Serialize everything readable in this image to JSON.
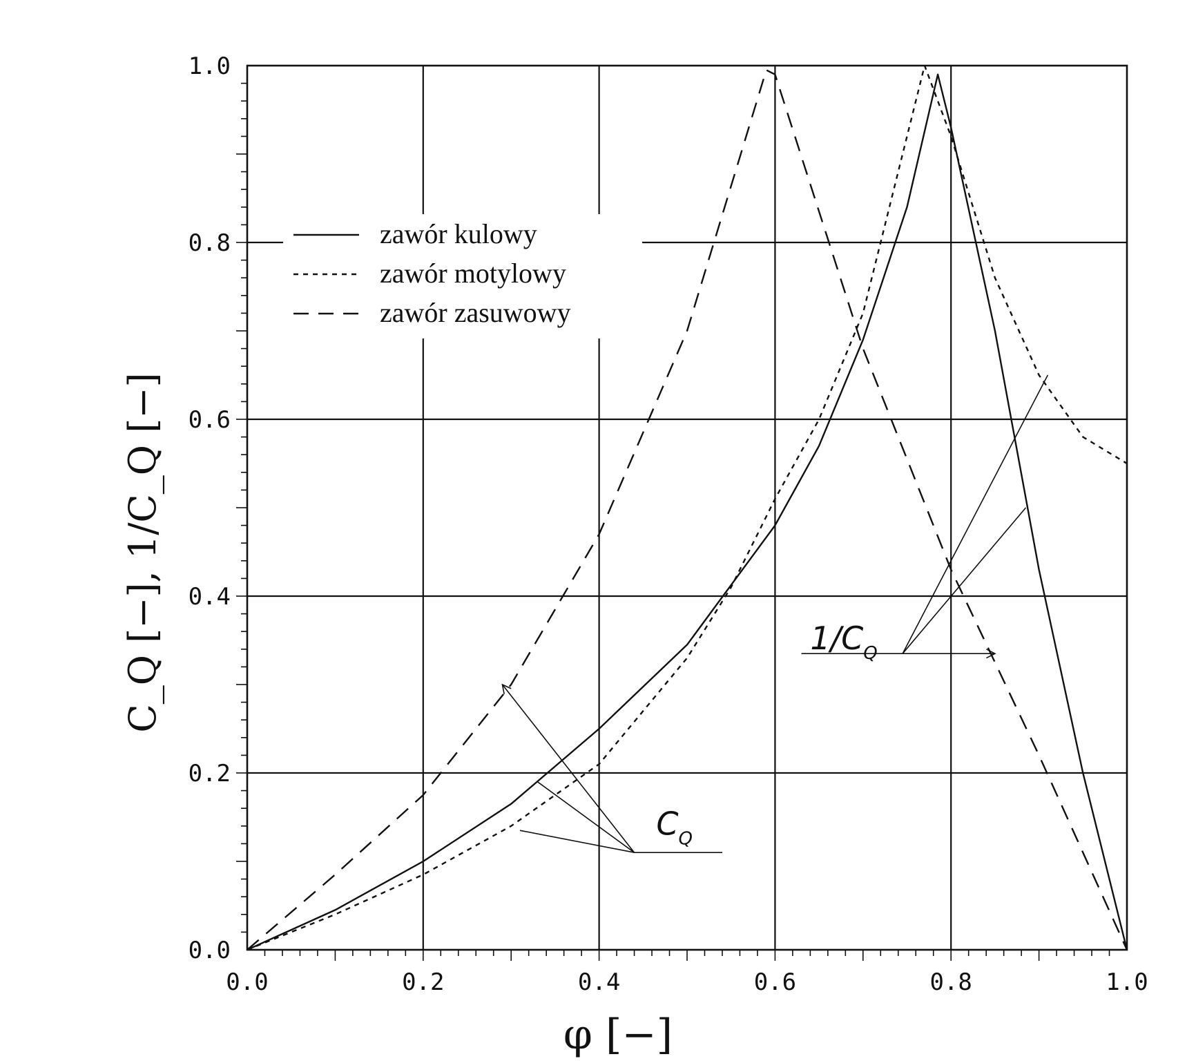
{
  "chart_data": {
    "type": "line",
    "xlabel": "φ [−]",
    "ylabel": "C_Q [−],  1/C_Q [−]",
    "xlim": [
      0,
      1
    ],
    "ylim": [
      0,
      1
    ],
    "x_ticks": [
      "0.0",
      "0.2",
      "0.4",
      "0.6",
      "0.8",
      "1.0"
    ],
    "y_ticks": [
      "0.0",
      "0.2",
      "0.4",
      "0.6",
      "0.8",
      "1.0"
    ],
    "grid": true,
    "legend_position": "top-left",
    "series": [
      {
        "name": "zawór kulowy",
        "dash": "solid",
        "x": [
          0.0,
          0.1,
          0.2,
          0.3,
          0.4,
          0.5,
          0.6,
          0.65,
          0.7,
          0.75,
          0.785,
          0.8,
          0.85,
          0.9,
          0.95,
          1.0
        ],
        "y": [
          0.0,
          0.045,
          0.1,
          0.165,
          0.25,
          0.345,
          0.48,
          0.57,
          0.69,
          0.84,
          0.99,
          0.93,
          0.7,
          0.43,
          0.2,
          0.0
        ]
      },
      {
        "name": "zawór motylowy",
        "dash": "dotted",
        "x": [
          0.0,
          0.1,
          0.2,
          0.3,
          0.4,
          0.5,
          0.55,
          0.6,
          0.65,
          0.7,
          0.75,
          0.77,
          0.8,
          0.85,
          0.9,
          0.95,
          1.0
        ],
        "y": [
          0.0,
          0.04,
          0.085,
          0.14,
          0.21,
          0.33,
          0.41,
          0.51,
          0.6,
          0.72,
          0.92,
          1.0,
          0.92,
          0.76,
          0.65,
          0.58,
          0.55
        ]
      },
      {
        "name": "zawór zasuwowy",
        "dash": "dashed",
        "x": [
          0.0,
          0.1,
          0.2,
          0.3,
          0.4,
          0.5,
          0.59,
          0.6,
          0.7,
          0.8,
          0.9,
          1.0
        ],
        "y": [
          0.0,
          0.085,
          0.175,
          0.3,
          0.47,
          0.7,
          0.995,
          0.99,
          0.68,
          0.43,
          0.22,
          0.0
        ]
      }
    ],
    "annotations": [
      {
        "text": "C",
        "sub": "Q",
        "x": 0.465,
        "y": 0.13
      },
      {
        "text": "1/C",
        "sub": "Q",
        "x": 0.64,
        "y": 0.34
      }
    ]
  }
}
